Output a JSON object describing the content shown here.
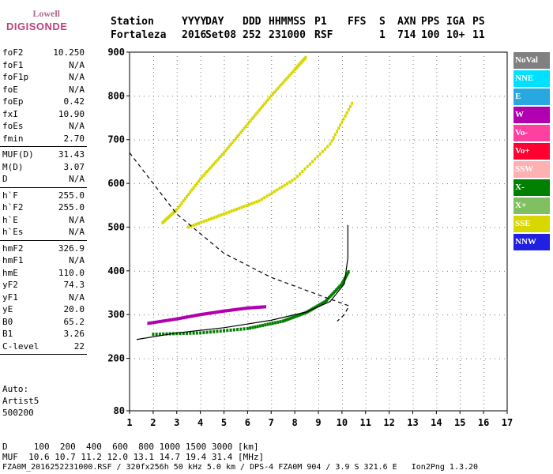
{
  "logo": {
    "line1": "Lowell",
    "line2": "DIGISONDE"
  },
  "header": {
    "labels": [
      "Station",
      "YYYY",
      "DAY",
      "DDD",
      "HHMMSS",
      "P1",
      "FFS",
      "S",
      "AXN",
      "PPS",
      "IGA",
      "PS"
    ],
    "values": [
      "Fortaleza",
      "2016",
      "Set08",
      "252",
      "231000",
      "RSF",
      "",
      "1",
      "714",
      "100",
      "10+",
      "11"
    ]
  },
  "params": [
    {
      "k": "foF2",
      "v": "10.250"
    },
    {
      "k": "foF1",
      "v": "N/A"
    },
    {
      "k": "foF1p",
      "v": "N/A"
    },
    {
      "k": "foE",
      "v": "N/A"
    },
    {
      "k": "foEp",
      "v": "0.42"
    },
    {
      "k": "fxI",
      "v": "10.90"
    },
    {
      "k": "foEs",
      "v": "N/A"
    },
    {
      "k": "fmin",
      "v": "2.70"
    },
    {
      "k": "MUF(D)",
      "v": "31.43"
    },
    {
      "k": "M(D)",
      "v": "3.07"
    },
    {
      "k": "D",
      "v": "N/A"
    },
    {
      "k": "h`F",
      "v": "255.0"
    },
    {
      "k": "h`F2",
      "v": "255.0"
    },
    {
      "k": "h`E",
      "v": "N/A"
    },
    {
      "k": "h`Es",
      "v": "N/A"
    },
    {
      "k": "hmF2",
      "v": "326.9"
    },
    {
      "k": "hmF1",
      "v": "N/A"
    },
    {
      "k": "hmE",
      "v": "110.0"
    },
    {
      "k": "yF2",
      "v": "74.3"
    },
    {
      "k": "yF1",
      "v": "N/A"
    },
    {
      "k": "yE",
      "v": "20.0"
    },
    {
      "k": "B0",
      "v": "65.2"
    },
    {
      "k": "B1",
      "v": "3.26"
    },
    {
      "k": "C-level",
      "v": "22"
    }
  ],
  "auto": {
    "label": "Auto:",
    "artist": "Artist5",
    "code": "500200"
  },
  "legend": [
    {
      "name": "NoVal",
      "color": "#808080"
    },
    {
      "name": "NNE",
      "color": "#00e0ff"
    },
    {
      "name": "E",
      "color": "#28a8e0"
    },
    {
      "name": "W",
      "color": "#b000b0"
    },
    {
      "name": "Vo-",
      "color": "#ff40a0"
    },
    {
      "name": "Vo+",
      "color": "#ff0030"
    },
    {
      "name": "SSW",
      "color": "#ffb0b0"
    },
    {
      "name": "X-",
      "color": "#008000"
    },
    {
      "name": "X+",
      "color": "#80c060"
    },
    {
      "name": "SSE",
      "color": "#d8d800"
    },
    {
      "name": "NNW",
      "color": "#2020e0"
    }
  ],
  "footer": {
    "line1": "D     100  200  400  600  800 1000 1500 3000 [km]",
    "line2": "MUF  10.6 10.7 11.2 12.0 13.1 14.7 19.4 31.4 [MHz]",
    "line3": "FZA0M_2016252231000.RSF / 320fx256h 50 kHz 5.0 km / DPS-4 FZA0M 904 / 3.9 S 321.6 E   Ion2Png 1.3.20"
  },
  "chart_data": {
    "type": "scatter",
    "xlim": [
      1,
      17
    ],
    "ylim": [
      80,
      900
    ],
    "x_ticks": [
      1,
      2,
      3,
      4,
      5,
      6,
      7,
      8,
      9,
      10,
      11,
      12,
      13,
      14,
      15,
      16,
      17
    ],
    "y_ticks": [
      80,
      200,
      300,
      400,
      500,
      600,
      700,
      800,
      900
    ],
    "grid": true,
    "legend_position": "right",
    "series": [
      {
        "name": "SSE",
        "color": "#d8d800",
        "x": [
          2.4,
          3.0,
          4.0,
          5.0,
          6.0,
          7.0,
          8.0,
          8.5
        ],
        "y": [
          510,
          540,
          610,
          670,
          735,
          800,
          860,
          890
        ]
      },
      {
        "name": "SSE",
        "color": "#d8d800",
        "x": [
          3.5,
          5.0,
          6.5,
          8.0,
          9.5,
          10.5
        ],
        "y": [
          500,
          530,
          560,
          610,
          690,
          790
        ]
      },
      {
        "name": "W",
        "color": "#b000b0",
        "x": [
          1.8,
          3.0,
          4.0,
          5.0,
          6.0,
          6.8
        ],
        "y": [
          280,
          290,
          300,
          308,
          315,
          318
        ]
      },
      {
        "name": "X-",
        "color": "#008000",
        "x": [
          2.0,
          4.0,
          6.0,
          7.5,
          8.5,
          9.3,
          10.0,
          10.3
        ],
        "y": [
          255,
          258,
          268,
          285,
          305,
          330,
          370,
          400
        ]
      }
    ],
    "fitted_curve": {
      "x": [
        1.3,
        3,
        5,
        7,
        8.5,
        9.5,
        10.1,
        10.25,
        10.25
      ],
      "y": [
        243,
        258,
        270,
        287,
        306,
        330,
        370,
        430,
        505
      ]
    },
    "profile_curve": {
      "x": [
        1.0,
        3.0,
        5.0,
        7.0,
        9.0,
        10.3,
        10.1,
        9.8
      ],
      "y": [
        670,
        530,
        440,
        385,
        345,
        320,
        300,
        285
      ]
    }
  }
}
